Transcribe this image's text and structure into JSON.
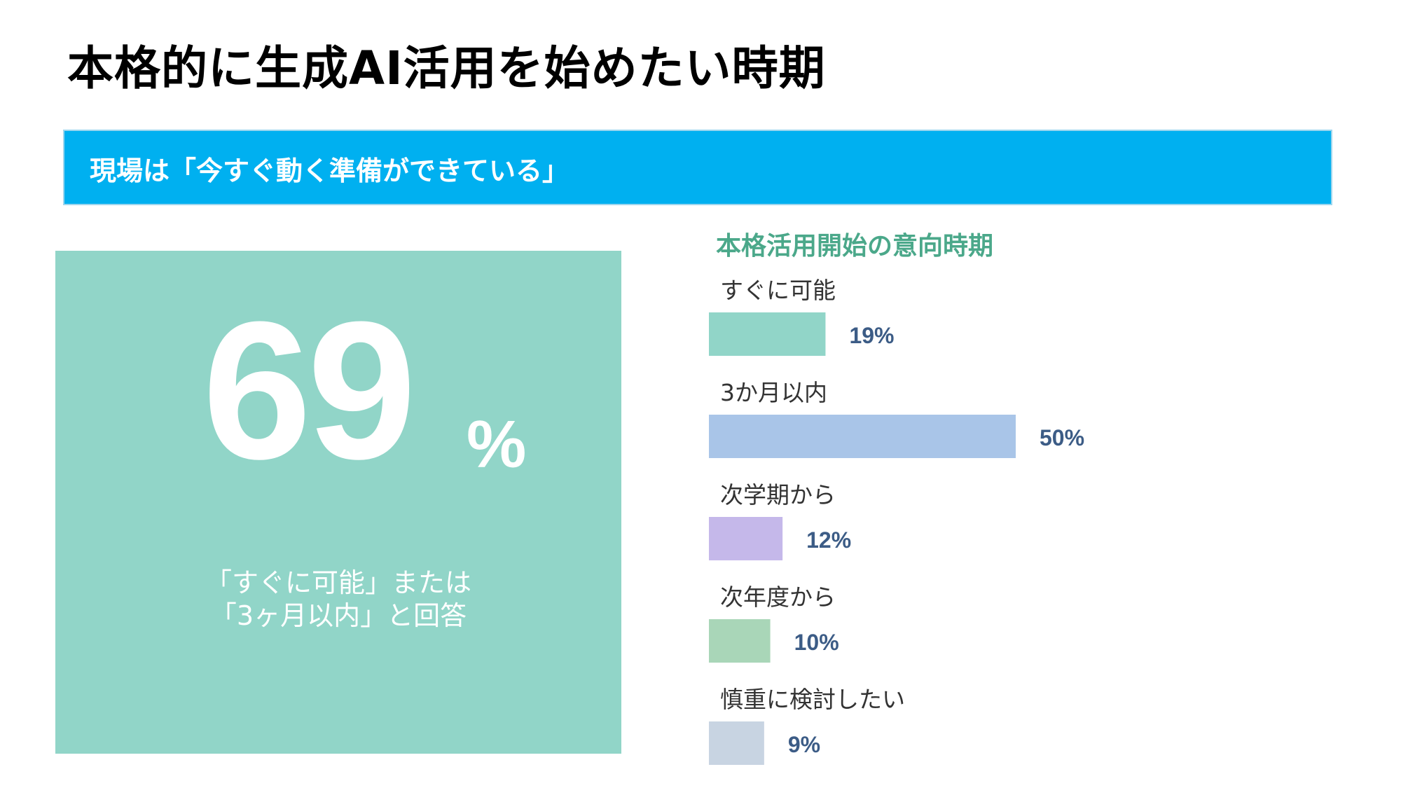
{
  "page": {
    "title": "本格的に生成AI活用を始めたい時期",
    "banner": "現場は「今すぐ動く準備ができている」"
  },
  "kpi": {
    "number": "69",
    "unit": "%",
    "caption_line1": "「すぐに可能」または",
    "caption_line2": "「3ヶ月以内」と回答",
    "card_color": "#91d5c8"
  },
  "chart_data": {
    "type": "bar",
    "orientation": "horizontal",
    "title": "本格活用開始の意向時期",
    "categories": [
      "すぐに可能",
      "3か月以内",
      "次学期から",
      "次年度から",
      "慎重に検討したい"
    ],
    "values": [
      19,
      50,
      12,
      10,
      9
    ],
    "value_labels": [
      "19%",
      "50%",
      "12%",
      "10%",
      "9%"
    ],
    "unit": "%",
    "colors": [
      "#91d5c8",
      "#a9c5e8",
      "#c5b8ea",
      "#a9d6b8",
      "#c8d4e2"
    ],
    "xlim": [
      0,
      100
    ],
    "grid": false,
    "legend": "none"
  }
}
